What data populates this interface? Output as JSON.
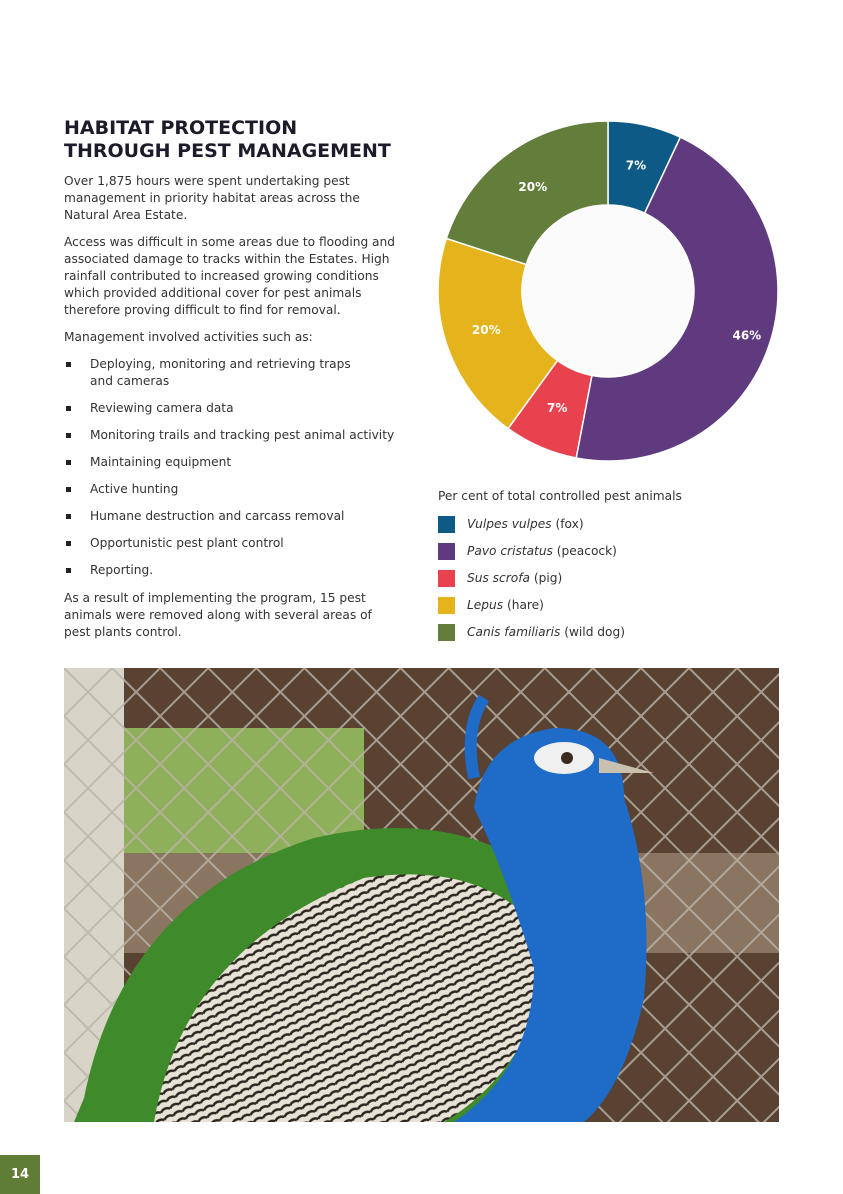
{
  "heading": [
    "HABITAT PROTECTION",
    "THROUGH PEST MANAGEMENT"
  ],
  "paragraphs": [
    "Over 1,875 hours were spent undertaking pest management in priority habitat areas across the Natural Area Estate.",
    "Access was difficult in some areas due to flooding and associated damage to tracks within the Estates. High rainfall contributed to increased growing conditions which provided additional cover for pest animals therefore proving difficult to find for removal.",
    "Management involved activities such as:"
  ],
  "bullets": [
    "Deploying, monitoring and retrieving traps and cameras",
    "Reviewing camera data",
    "Monitoring trails and tracking pest animal activity",
    "Maintaining equipment",
    "Active hunting",
    "Humane destruction and carcass removal",
    "Opportunistic pest plant control",
    "Reporting."
  ],
  "closing": "As a result of implementing the program, 15 pest animals were removed along with several areas of pest plants control.",
  "chart_data": {
    "type": "donut",
    "title": "Per cent of total controlled pest animals",
    "categories": [
      "Vulpes vulpes",
      "Pavo cristatus",
      "Sus scrofa",
      "Lepus",
      "Canis familiaris"
    ],
    "common_names": [
      "(fox)",
      "(peacock)",
      "(pig)",
      "(hare)",
      "(wild dog)"
    ],
    "values": [
      7,
      46,
      7,
      20,
      20
    ],
    "value_labels": [
      "7%",
      "46%",
      "7%",
      "20%",
      "20%"
    ],
    "colors": [
      "#0e5a86",
      "#5f3a7f",
      "#e8424f",
      "#e5b31b",
      "#627e3a"
    ]
  },
  "page_number": "14"
}
